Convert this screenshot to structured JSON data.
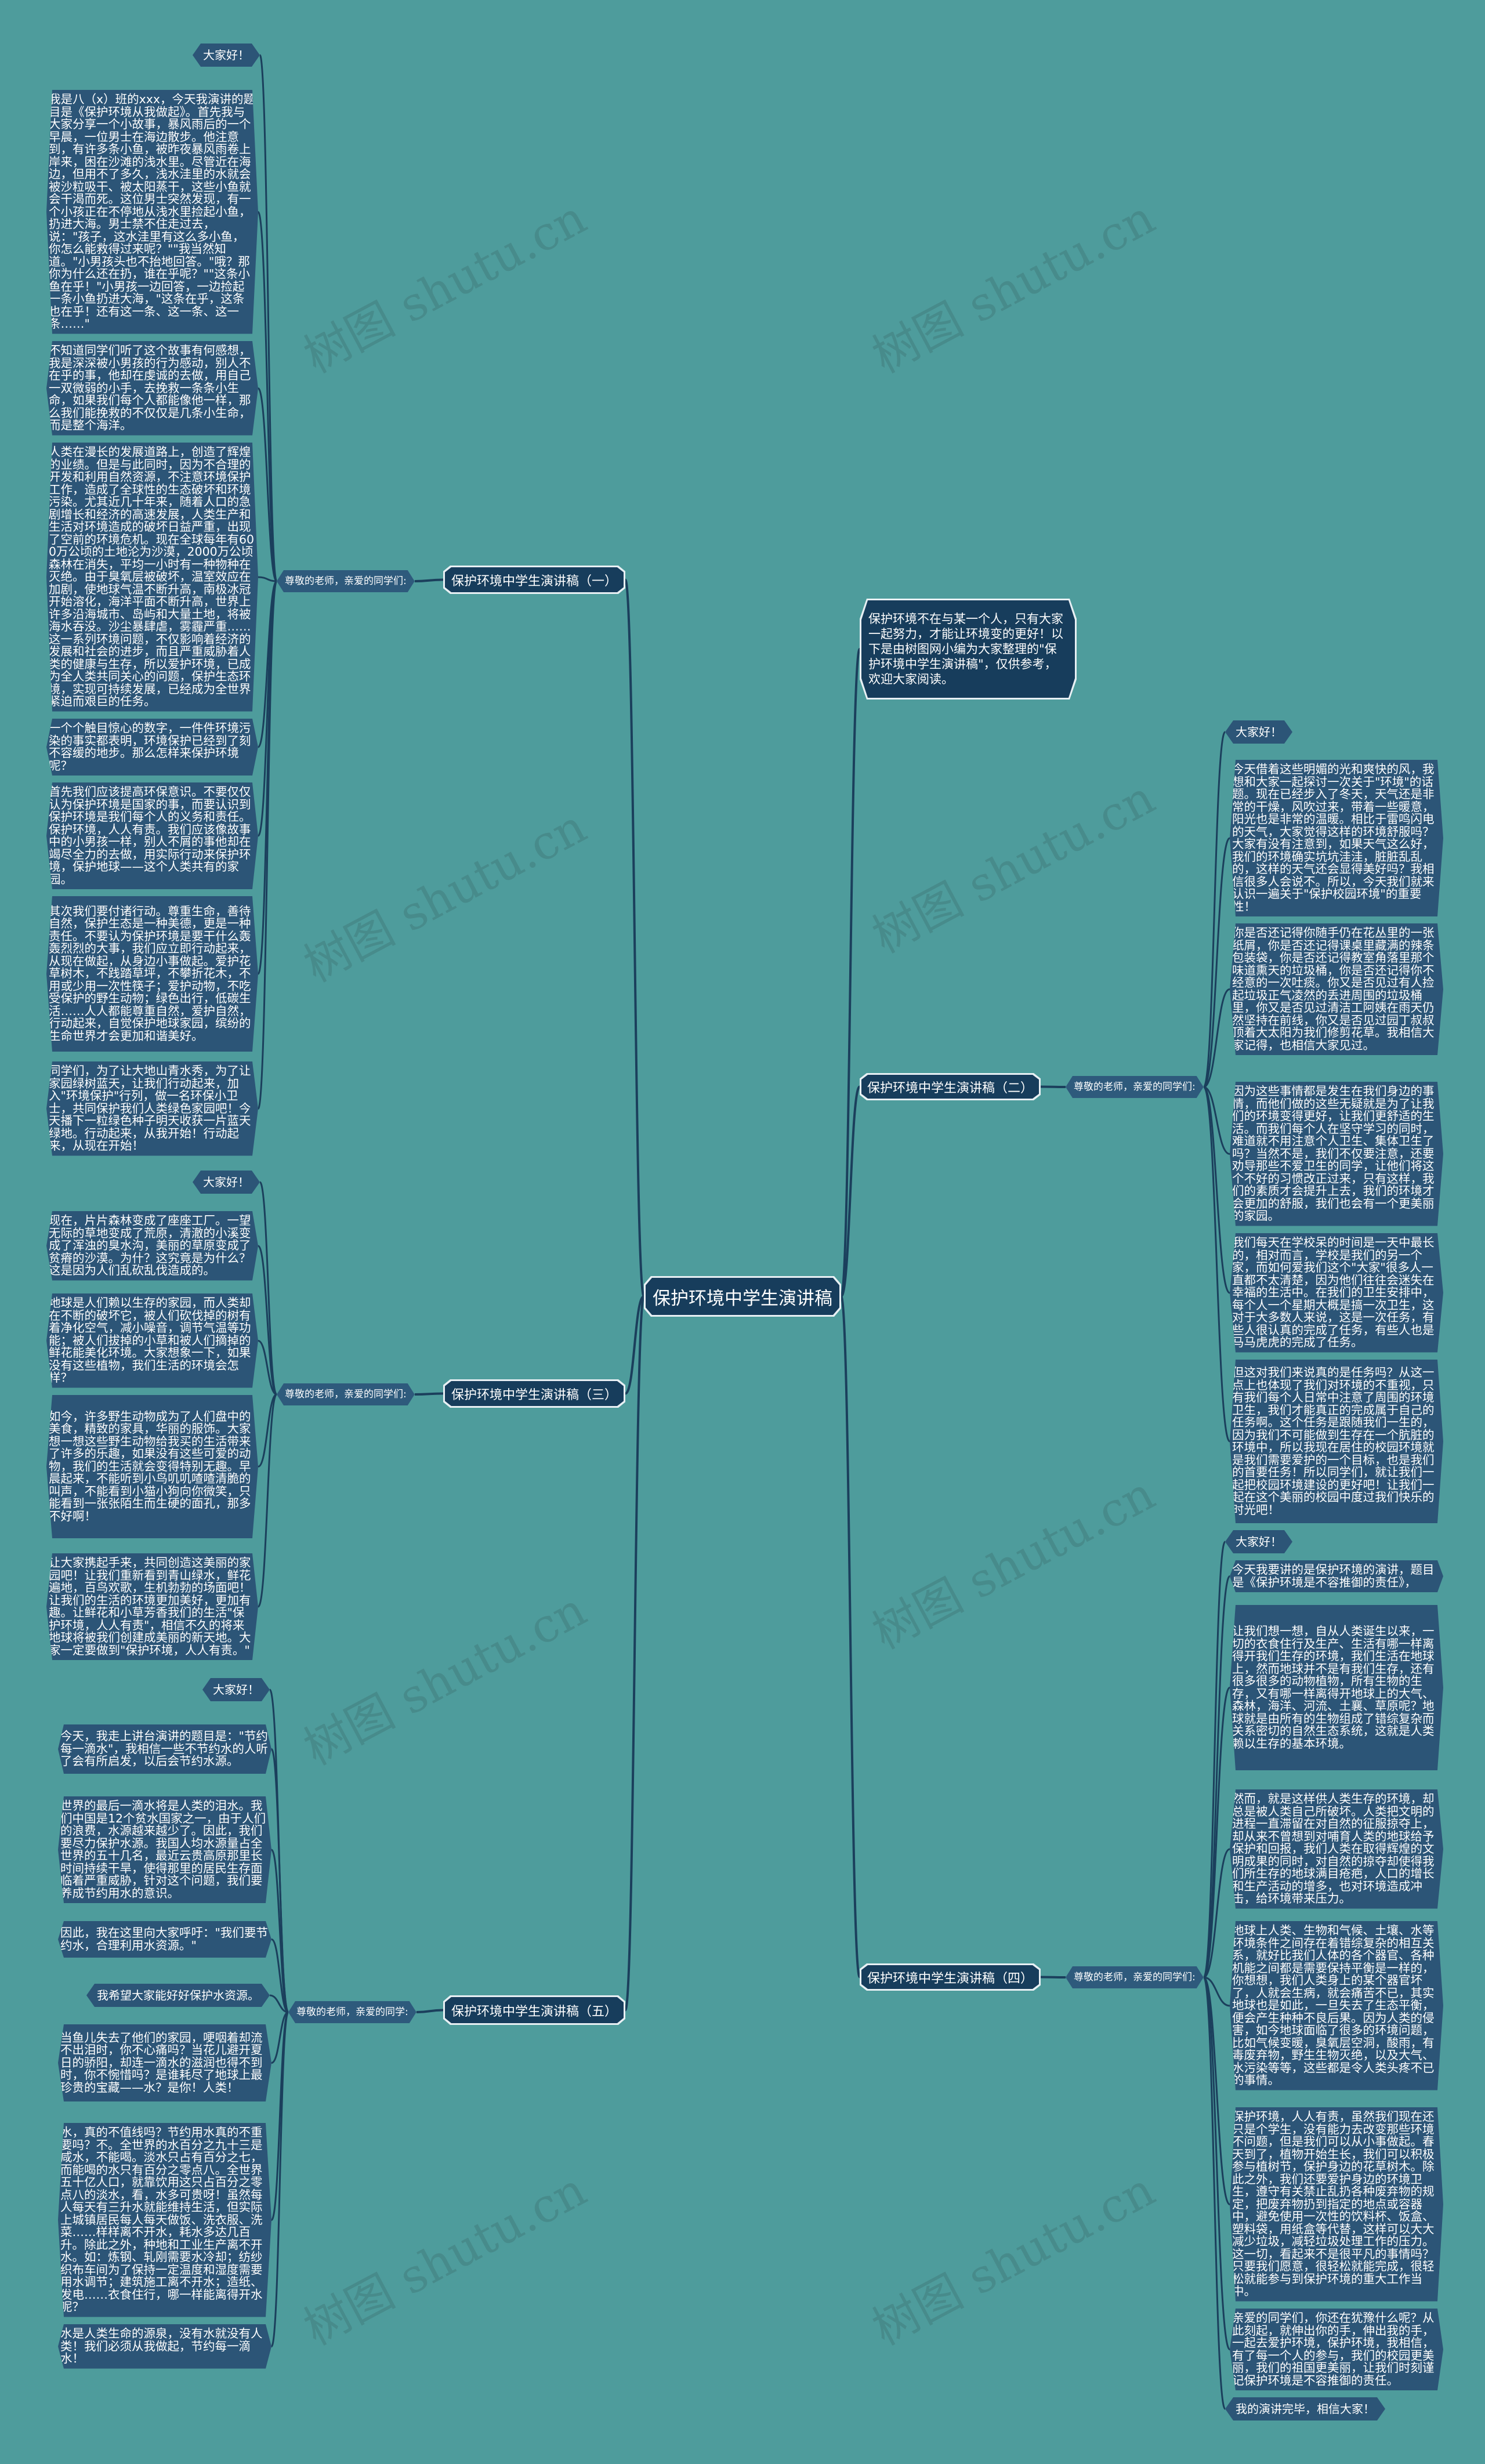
{
  "watermark": "树图 shutu.cn",
  "colors": {
    "background": "#4e9c9c",
    "node": "#2c5577",
    "title_node": "#173d5c",
    "line": "#1b3f5c"
  },
  "root": {
    "title": "保护环境中学生演讲稿"
  },
  "intro": "保护环境不在与某一个人，只有大家一起努力，才能让环境变的更好！以下是由树图网小编为大家整理的\"保护环境中学生演讲稿\"，仅供参考，欢迎大家阅读。",
  "branches": [
    {
      "title": "保护环境中学生演讲稿（一）",
      "greeting": "尊敬的老师，亲爱的同学们:",
      "items": [
        "大家好！",
        "我是八（x）班的xxx，今天我演讲的题目是《保护环境从我做起》。首先我与大家分享一个小故事，暴风雨后的一个早晨，一位男士在海边散步。他注意到，有许多条小鱼，被昨夜暴风雨卷上岸来，困在沙滩的浅水里。尽管近在海边，但用不了多久，浅水洼里的水就会被沙粒吸干、被太阳蒸干，这些小鱼就会干渴而死。这位男士突然发现，有一个小孩正在不停地从浅水里捡起小鱼，扔进大海。男士禁不住走过去，说：\"孩子，这水洼里有这么多小鱼，你怎么能救得过来呢？\"\"我当然知道。\"小男孩头也不抬地回答。\"哦？那你为什么还在扔，谁在乎呢？\"\"这条小鱼在乎！\"小男孩一边回答，一边捡起一条小鱼扔进大海，\"这条在乎，这条也在乎！还有这一条、这一条、这一条……\"",
        "不知道同学们听了这个故事有何感想，我是深深被小男孩的行为感动，别人不在乎的事，他却在虔诚的去做，用自己一双微弱的小手，去挽救一条条小生命，如果我们每个人都能像他一样，那么我们能挽救的不仅仅是几条小生命，而是整个海洋。",
        "人类在漫长的发展道路上，创造了辉煌的业绩。但是与此同时，因为不合理的开发和利用自然资源，不注意环境保护工作，造成了全球性的生态破坏和环境污染。尤其近几十年来，随着人口的急剧增长和经济的高速发展，人类生产和生活对环境造成的破坏日益严重，出现了空前的环境危机。现在全球每年有600万公顷的土地沦为沙漠，2000万公顷森林在消失，平均一小时有一种物种在灭绝。由于臭氧层被破坏，温室效应在加剧，使地球气温不断升高，南极冰冠开始溶化，海洋平面不断升高，世界上许多沿海城市、岛屿和大量土地，将被海水吞没。沙尘暴肆虐，雾霾严重……这一系列环境问题，不仅影响着经济的发展和社会的进步，而且严重威胁着人类的健康与生存，所以爱护环境，已成为全人类共同关心的问题，保护生态环境，实现可持续发展，已经成为全世界紧迫而艰巨的任务。",
        "一个个触目惊心的数字，一件件环境污染的事实都表明，环境保护已经到了刻不容缓的地步。那么怎样来保护环境呢？",
        "首先我们应该提高环保意识。不要仅仅认为保护环境是国家的事，而要认识到保护环境是我们每个人的义务和责任。保护环境，人人有责。我们应该像故事中的小男孩一样，别人不屑的事他却在竭尽全力的去做，用实际行动来保护环境，保护地球——这个人类共有的家园。",
        "其次我们要付诸行动。尊重生命，善待自然，保护生态是一种美德，更是一种责任。不要认为保护环境是要干什么轰轰烈烈的大事，我们应立即行动起来，从现在做起，从身边小事做起。爱护花草树木，不践踏草坪，不攀折花木，不用或少用一次性筷子；爱护动物，不吃受保护的野生动物；绿色出行，低碳生活……人人都能尊重自然，爱护自然，行动起来，自觉保护地球家园，缤纷的生命世界才会更加和谐美好。",
        "同学们，为了让大地山青水秀，为了让家园绿树蓝天，让我们行动起来，加入\"环境保护\"行列，做一名环保小卫士，共同保护我们人类绿色家园吧！今天播下一粒绿色种子明天收获一片蓝天绿地。行动起来，从我开始！行动起来，从现在开始！"
      ]
    },
    {
      "title": "保护环境中学生演讲稿（二）",
      "greeting": "尊敬的老师，亲爱的同学们:",
      "items": [
        "大家好！",
        "今天借着这些明媚的光和爽快的风，我想和大家一起探讨一次关于\"环境\"的话题。现在已经步入了冬天，天气还是非常的干燥，风吹过来，带着一些暖意，阳光也是非常的温暖。相比于雷鸣闪电的天气，大家觉得这样的环境舒服吗？大家有没有注意到，如果天气这么好，我们的环境确实坑坑洼洼，脏脏乱乱的，这样的天气还会显得美好吗？我相信很多人会说不。所以，今天我们就来认识一遍关于\"保护校园环境\"的重要性！",
        "你是否还记得你随手仍在花丛里的一张纸屑，你是否还记得课桌里藏满的辣条包装袋，你是否还记得教室角落里那个味道熏天的垃圾桶，你是否还记得你不经意的一次吐痰。你又是否见过有人捡起垃圾正气凌然的丢进周围的垃圾桶里，你又是否见过清洁工阿姨在雨天仍然坚持在前线，你又是否见过园丁叔叔顶着大太阳为我们修剪花草。我相信大家记得，也相信大家见过。",
        "因为这些事情都是发生在我们身边的事情，而他们做的这些无疑就是为了让我们的环境变得更好，让我们更舒适的生活。而我们每个人在坚守学习的同时，难道就不用注意个人卫生、集体卫生了吗？当然不是，我们不仅要注意，还要劝导那些不爱卫生的同学，让他们将这个不好的习惯改正过来，只有这样，我们的素质才会提升上去，我们的环境才会更加的舒服，我们也会有一个更美丽的家园。",
        "我们每天在学校呆的时间是一天中最长的，相对而言，学校是我们的另一个家，而如何爱我们这个\"大家\"很多人一直都不太清楚，因为他们往往会迷失在幸福的生活中。在我们的卫生安排中，每个人一个星期大概是搞一次卫生，这对于大多数人来说，这是一次任务，有些人很认真的完成了任务，有些人也是马马虎虎的完成了任务。",
        "但这对我们来说真的是任务吗？从这一点上也体现了我们对环境的不重视，只有我们每个人日常中注意了周围的环境卫生，我们才能真正的完成属于自己的任务啊。这个任务是跟随我们一生的，因为我们不可能做到生存在一个肮脏的环境中，所以我现在居住的校园环境就是我们需要爱护的一个目标，也是我们的首要任务！所以同学们，就让我们一起把校园环境建设的更好吧！让我们一起在这个美丽的校园中度过我们快乐的时光吧！"
      ]
    },
    {
      "title": "保护环境中学生演讲稿（三）",
      "greeting": "尊敬的老师，亲爱的同学们:",
      "items": [
        "大家好！",
        "现在，片片森林变成了座座工厂。一望无际的草地变成了荒原，清澈的小溪变成了浑浊的臭水沟，美丽的草原变成了贫瘠的沙漠。为什？这究竟是为什么？这是因为人们乱砍乱伐造成的。",
        "地球是人们赖以生存的家园，而人类却在不断的破坏它，被人们砍伐掉的树有着净化空气，减小噪音，调节气温等功能；被人们拔掉的小草和被人们摘掉的鲜花能美化环境。大家想象一下，如果没有这些植物，我们生活的环境会怎样？",
        "如今，许多野生动物成为了人们盘中的美食，精致的家具，华丽的服饰。大家想一想这些野生动物给我买的生活带来了许多的乐趣，如果没有这些可爱的动物，我们的生活就会变得特别无趣。早晨起来，不能听到小鸟叽叽喳喳清脆的叫声，不能看到小猫小狗向你微笑，只能看到一张张陌生而生硬的面孔，那多不好啊！",
        "让大家携起手来，共同创造这美丽的家园吧！让我们重新看到青山绿水，鲜花遍地，百鸟欢歌，生机勃勃的场面吧！让我们的生活的环境更加美好，更加有趣。让鲜花和小草芳香我们的生活\"保护环境，人人有责\"，相信不久的将来地球将被我们创建成美丽的新天地。大家一定要做到\"保护环境，人人有责。\""
      ]
    },
    {
      "title": "保护环境中学生演讲稿（四）",
      "greeting": "尊敬的老师，亲爱的同学们:",
      "items": [
        "大家好！",
        "今天我要讲的是保护环境的演讲，题目是《保护环境是不容推御的责任》，",
        "让我们想一想，自从人类诞生以来，一切的衣食住行及生产、生活有哪一样离得开我们生存的环境，我们生活在地球上，然而地球并不是有我们生存，还有很多很多的动物植物，所有生物的生存，又有哪一样离得开地球上的大气、森林，海洋、河流、土襄、草原呢？地球就是由所有的生物组成了错综复杂而关系密切的自然生态系统，这就是人类赖以生存的基本环境。",
        "然而，就是这样供人类生存的环境，却总是被人类自己所破坏。人类把文明的进程一直滞留在对自然的征服掠夺上，却从来不曾想到对哺育人类的地球给予保护和回报，我们人类在取得辉煌的文明成果的同时，对自然的掠夺却使得我们所生存的地球满目疮疤，人口的增长和生产活动的增多，也对环境造成冲击，给环境带来压力。",
        "地球上人类、生物和气候、土壤、水等环境条件之间存在着错综复杂的相互关系，就好比我们人体的各个器官、各种机能之间都是需要保持平衡是一样的，你想想，我们人类身上的某个器官坏了，人就会生病，就会痛苦不已，其实地球也是如此，一旦失去了生态平衡，便会产生种种不良后果。因为人类的侵害，如今地球面临了很多的环境问题，比如气候变暖，臭氧层空洞，酸雨，有毒废弃物，野生生物灭绝，以及大气、水污染等等，这些都是令人类头疼不已的事情。",
        "保护环境，人人有责，虽然我们现在还只是个学生，没有能力去改变那些环境不问题，但是我们可以从小事做起。春天到了，植物开始生长，我们可以积极参与植树节，保护身边的花草树木。除此之外，我们还要爱护身边的环境卫生，遵守有关禁止乱扔各种废弃物的规定，把废弃物扔到指定的地点或容器中，避免使用一次性的饮料杯、饭盒、塑料袋，用纸盒等代替，这样可以大大减少垃圾，减轻垃圾处理工作的压力。这一切，看起来不是很平凡的事情吗？只要我们愿意，很轻松就能完成，很轻松就能参与到保护环境的重大工作当中。",
        "亲爱的同学们，你还在犹豫什么呢？从此刻起，就伸出你的手，伸出我的手，一起去爱护环境，保护环境，我相信，有了每一个人的参与，我们的校园更美丽，我们的祖国更美丽，让我们时刻谨记保护环境是不容推御的责任。",
        "我的演讲完毕，相信大家！"
      ]
    },
    {
      "title": "保护环境中学生演讲稿（五）",
      "greeting": "尊敬的老师，亲爱的同学:",
      "items": [
        "大家好！",
        "今天，我走上讲台演讲的题目是：\"节约每一滴水\"，我相信一些不节约水的人听了会有所启发，以后会节约水源。",
        "世界的最后一滴水将是人类的泪水。我们中国是12个贫水国家之一，由于人们的浪费，水源越来越少了。因此，我们要尽力保护水源。我国人均水源量占全世界的五十几名，最近云贵高原那里长时间持续干旱，使得那里的居民生存面临着严重威胁，针对这个问题，我们要养成节约用水的意识。",
        "因此，我在这里向大家呼吁：\"我们要节约水，合理利用水资源。\"",
        "我希望大家能好好保护水资源。",
        "当鱼儿失去了他们的家园，哽咽着却流不出泪时，你不心痛吗？当花儿避开夏日的骄阳，却连一滴水的滋润也得不到时，你不惋惜吗？是谁耗尽了地球上最珍贵的宝藏——水？是你！人类！",
        "水，真的不值线吗？节约用水真的不重要吗？不。全世界的水百分之九十三是咸水，不能喝。淡水只占有百分之七，而能喝的水只有百分之零点八。全世界五十亿人口，就靠饮用这只占百分之零点八的淡水，看，水多可贵呀！虽然每人每天有三升水就能维持生活，但实际上城镇居民每人每天做饭、洗衣服、洗菜……样样离不开水，耗水多达几百升。除此之外，种地和工业生产离不开水。如：炼钢、轧刚需要水冷却；纺纱织布车间为了保持一定温度和湿度需要用水调节；建筑施工离不开水；造纸、发电……衣食住行，哪一样能离得开水呢？",
        "水是人类生命的源泉，没有水就没有人类！我们必须从我做起，节约每一滴水！"
      ]
    }
  ]
}
